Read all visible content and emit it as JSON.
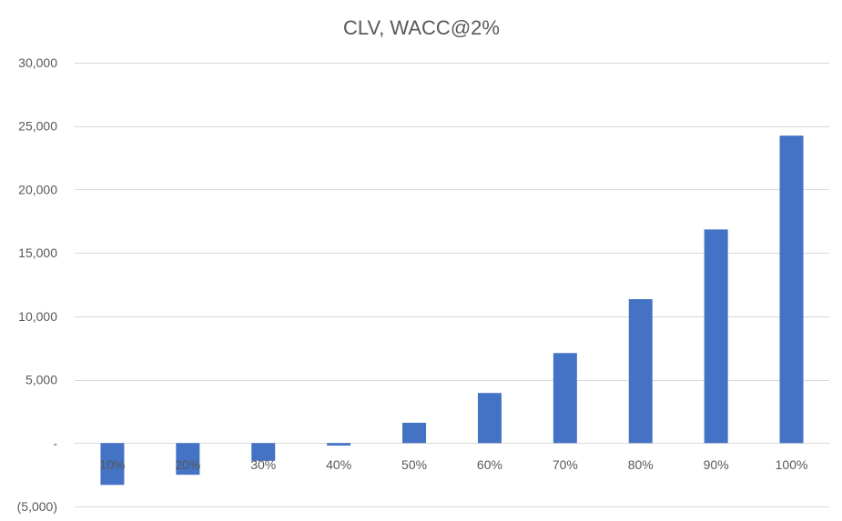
{
  "chart_data": {
    "type": "bar",
    "title": "CLV, WACC@2%",
    "xlabel": "",
    "ylabel": "",
    "categories": [
      "10%",
      "20%",
      "30%",
      "40%",
      "50%",
      "60%",
      "70%",
      "80%",
      "90%",
      "100%"
    ],
    "series": [
      {
        "name": "CLV",
        "values": [
          -3300,
          -2500,
          -1400,
          -200,
          1600,
          3950,
          7100,
          11350,
          16850,
          24250
        ]
      }
    ],
    "ylim": [
      -5000,
      30000
    ],
    "yticks": [
      -5000,
      0,
      5000,
      10000,
      15000,
      20000,
      25000,
      30000
    ],
    "ytick_labels": [
      "(5,000)",
      "-",
      "5,000",
      "10,000",
      "15,000",
      "20,000",
      "25,000",
      "30,000"
    ],
    "grid": true,
    "legend": "none",
    "bar_color": "#4472c4"
  }
}
